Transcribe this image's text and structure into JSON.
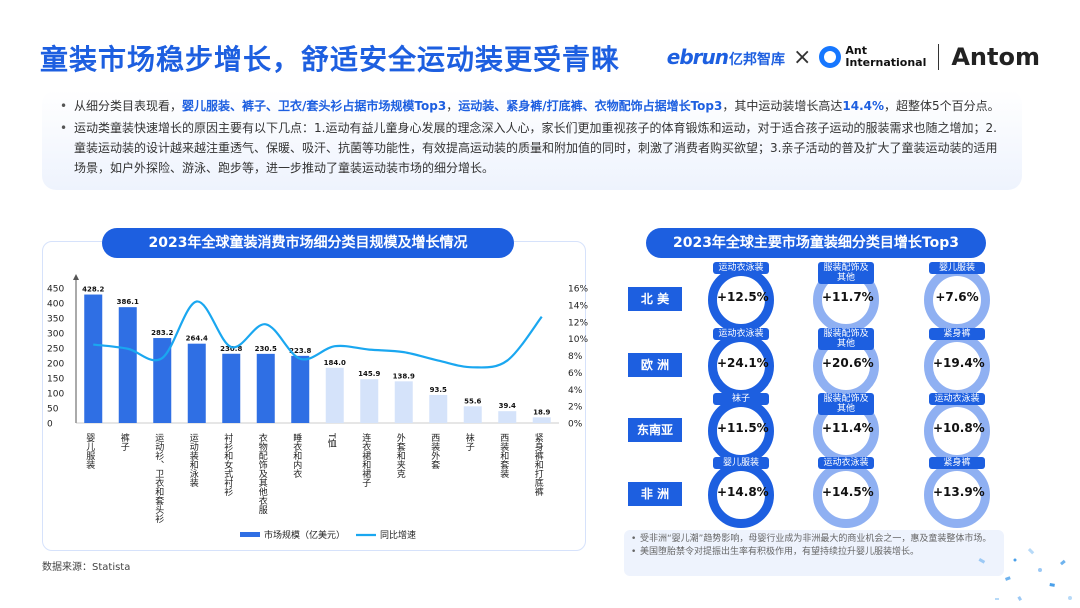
{
  "header": {
    "title": "童装市场稳步增长，舒适安全运动装更受青睐",
    "logo_ebrun": "ebrun",
    "logo_ebrun_cn": "亿邦智库",
    "logo_x": "×",
    "logo_ant_line1": "Ant",
    "logo_ant_line2": "International",
    "logo_antom": "Antom"
  },
  "summary": {
    "p1_a": "从细分类目表现看，",
    "p1_hl1": "婴儿服装、裤子、卫衣/套头衫占据市场规模Top3",
    "p1_b": "，",
    "p1_hl2": "运动装、紧身裤/打底裤、衣物配饰占据增长Top3",
    "p1_c": "，其中运动装增长高达",
    "p1_hl3": "14.4%",
    "p1_d": "，超整体5个百分点。",
    "p2": "运动类童装快速增长的原因主要有以下几点：1.运动有益儿童身心发展的理念深入人心，家长们更加重视孩子的体育锻炼和运动，对于适合孩子运动的服装需求也随之增加；2.童装运动装的设计越来越注重透气、保暖、吸汗、抗菌等功能性，有效提高运动装的质量和附加值的同时，刺激了消费者购买欲望；3.亲子活动的普及扩大了童装运动装的适用场景，如户外探险、游泳、跑步等，进一步推动了童装运动装市场的细分增长。"
  },
  "left_chart": {
    "title": "2023年全球童装消费市场细分类目规模及增长情况",
    "legend_bar": "市场规模（亿美元）",
    "legend_line": "同比增速"
  },
  "chart_data": {
    "type": "bar",
    "categories": [
      "婴儿服装",
      "裤子",
      "运动衫、卫衣和套头衫",
      "运动装和泳装",
      "衬衫和女式衬衫",
      "衣物配饰及其他衣服",
      "睡衣和内衣",
      "T恤",
      "连衣裙和裙子",
      "外套和夹克",
      "西装外套",
      "袜子",
      "西装和套装",
      "紧身裤和打底裤"
    ],
    "series": [
      {
        "name": "市场规模（亿美元）",
        "type": "bar",
        "axis": "left",
        "values": [
          428.2,
          386.1,
          283.2,
          264.4,
          230.8,
          230.5,
          223.8,
          184.0,
          145.9,
          138.9,
          93.5,
          55.6,
          39.4,
          18.9
        ]
      },
      {
        "name": "同比增速",
        "type": "line",
        "axis": "right",
        "unit": "%",
        "values": [
          9.3,
          8.8,
          7.7,
          14.4,
          9.0,
          11.7,
          7.6,
          9.1,
          8.7,
          8.4,
          7.4,
          6.6,
          7.4,
          12.6
        ]
      }
    ],
    "ylim_left": [
      0,
      450
    ],
    "yticks_left": [
      "450",
      "400",
      "350",
      "300",
      "250",
      "200",
      "150",
      "100",
      "50",
      "0"
    ],
    "ylim_right": [
      0,
      16
    ],
    "yticks_right": [
      "16%",
      "14%",
      "12%",
      "10%",
      "8%",
      "6%",
      "4%",
      "2%",
      "0%"
    ],
    "value_labels": [
      "428.2",
      "386.1",
      "283.2",
      "264.4",
      "230.8",
      "230.5",
      "223.8",
      "184.0",
      "145.9",
      "138.9",
      "93.5",
      "55.6",
      "39.4",
      "18.9"
    ],
    "bar_colors": {
      "top7": "#2f6fe4",
      "rest": "#d5e3fa"
    },
    "line_color": "#1aa7f0",
    "legend": "bottom"
  },
  "right_panel": {
    "title": "2023年全球主要市场童装细分类目增长Top3",
    "regions": [
      {
        "name": "北 美",
        "items": [
          {
            "cat": "运动衣泳装",
            "val": "+12.5%"
          },
          {
            "cat": "服装配饰及其他",
            "val": "+11.7%"
          },
          {
            "cat": "婴儿服装",
            "val": "+7.6%"
          }
        ]
      },
      {
        "name": "欧 洲",
        "items": [
          {
            "cat": "运动衣泳装",
            "val": "+24.1%"
          },
          {
            "cat": "服装配饰及其他",
            "val": "+20.6%"
          },
          {
            "cat": "紧身裤",
            "val": "+19.4%"
          }
        ]
      },
      {
        "name": "东南亚",
        "items": [
          {
            "cat": "袜子",
            "val": "+11.5%"
          },
          {
            "cat": "服装配饰及其他",
            "val": "+11.4%"
          },
          {
            "cat": "运动衣泳装",
            "val": "+10.8%"
          }
        ]
      },
      {
        "name": "非 洲",
        "items": [
          {
            "cat": "婴儿服装",
            "val": "+14.8%"
          },
          {
            "cat": "运动衣泳装",
            "val": "+14.5%"
          },
          {
            "cat": "紧身裤",
            "val": "+13.9%"
          }
        ]
      }
    ],
    "notes": [
      "受非洲“婴儿潮”趋势影响，母婴行业成为非洲最大的商业机会之一，惠及童装整体市场。",
      "美国堕胎禁令对提振出生率有积极作用，有望持续拉升婴儿服装增长。"
    ]
  },
  "footer": {
    "source": "数据来源：Statista"
  },
  "colors": {
    "primary": "#1d5fe0",
    "ring_dark": "#1d5fe0",
    "ring_light": "#8fb0f2"
  }
}
